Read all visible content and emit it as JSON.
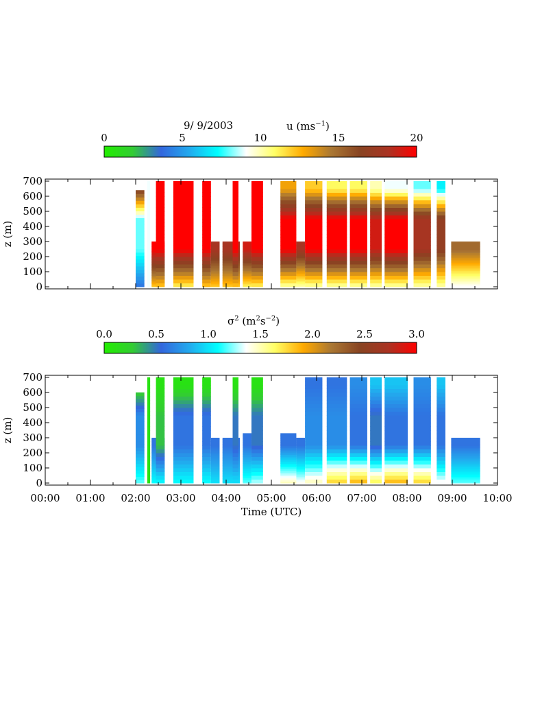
{
  "header": {
    "date": "9/ 9/2003",
    "top_title_prefix": "u (ms",
    "top_title_exp": "−1",
    "top_title_suffix": ")",
    "bottom_title_sym": "σ",
    "bottom_title_exp1": "2",
    "bottom_title_mid": " (m",
    "bottom_title_exp2": "2",
    "bottom_title_mid2": "s",
    "bottom_title_exp3": "−2",
    "bottom_title_suffix": ")"
  },
  "colors": {
    "colormap": [
      "#22ee00",
      "#33cc33",
      "#3366dd",
      "#22aaee",
      "#00ffff",
      "#ffffff",
      "#ffff66",
      "#ffaa00",
      "#aa7733",
      "#884422",
      "#aa3322",
      "#ff0000"
    ]
  },
  "chart_data": [
    {
      "type": "heatmap",
      "variable": "u",
      "title": "9/ 9/2003      u (ms−1)",
      "ylabel": "z (m)",
      "xlabel": "",
      "ylim": [
        0,
        700
      ],
      "xlim": [
        0,
        10
      ],
      "yticks": [
        "0",
        "100",
        "200",
        "300",
        "400",
        "500",
        "600",
        "700"
      ],
      "colorbar": {
        "range": [
          0,
          20
        ],
        "ticks": [
          "0",
          "5",
          "10",
          "15",
          "20"
        ]
      },
      "grid": false,
      "profiles": [
        {
          "t0": 2.0,
          "t1": 2.3,
          "top": 640,
          "surface": 4,
          "mix": 8,
          "upper": 17
        },
        {
          "t0": 2.4,
          "t1": 2.5,
          "top": 700,
          "surface": 9,
          "mix": 9,
          "upper": 9
        },
        {
          "t0": 2.55,
          "t1": 3.0,
          "top": 300,
          "surface": 12,
          "mix": 20,
          "upper": 20
        },
        {
          "t0": 2.7,
          "t1": 3.0,
          "top": 700,
          "surface": 12,
          "mix": 20,
          "upper": 20
        },
        {
          "t0": 3.3,
          "t1": 4.0,
          "top": 700,
          "surface": 11,
          "mix": 20,
          "upper": 20
        },
        {
          "t0": 4.3,
          "t1": 4.6,
          "top": 700,
          "surface": 12,
          "mix": 20,
          "upper": 20
        },
        {
          "t0": 4.6,
          "t1": 4.9,
          "top": 300,
          "surface": 12,
          "mix": 18,
          "upper": 18
        },
        {
          "t0": 5.0,
          "t1": 5.6,
          "top": 300,
          "surface": 12,
          "mix": 18,
          "upper": 18
        },
        {
          "t0": 5.35,
          "t1": 5.55,
          "top": 700,
          "surface": 12,
          "mix": 20,
          "upper": 20
        },
        {
          "t0": 5.7,
          "t1": 6.0,
          "top": 300,
          "surface": 11,
          "mix": 19,
          "upper": 19
        },
        {
          "t0": 6.0,
          "t1": 6.4,
          "top": 700,
          "surface": 11,
          "mix": 20,
          "upper": 20
        },
        {
          "t0": 7.0,
          "t1": 7.55,
          "top": 700,
          "surface": 10,
          "mix": 20,
          "upper": 13
        },
        {
          "t0": 7.55,
          "t1": 7.85,
          "top": 300,
          "surface": 10,
          "mix": 18,
          "upper": 18
        },
        {
          "t0": 7.85,
          "t1": 8.45,
          "top": 700,
          "surface": 10,
          "mix": 20,
          "upper": 12
        },
        {
          "t0": 8.6,
          "t1": 9.3,
          "top": 700,
          "surface": 10,
          "mix": 20,
          "upper": 11
        },
        {
          "t0": 9.4,
          "t1": 10.0,
          "top": 700,
          "surface": 10,
          "mix": 20,
          "upper": 11
        },
        {
          "t0": 10.1,
          "t1": 10.5,
          "top": 700,
          "surface": 10,
          "mix": 19,
          "upper": 10
        },
        {
          "t0": 10.6,
          "t1": 11.4,
          "top": 700,
          "surface": 10,
          "mix": 20,
          "upper": 9
        },
        {
          "t0": 11.6,
          "t1": 12.2,
          "top": 700,
          "surface": 10,
          "mix": 18,
          "upper": 8
        },
        {
          "t0": 12.4,
          "t1": 12.7,
          "top": 700,
          "surface": 10,
          "mix": 17,
          "upper": 7
        },
        {
          "t0": 12.9,
          "t1": 13.9,
          "top": 300,
          "surface": 9,
          "mix": 15,
          "upper": 15
        }
      ]
    },
    {
      "type": "heatmap",
      "variable": "sigma^2",
      "title": "σ2 (m2s−2)",
      "ylabel": "z (m)",
      "xlabel": "Time (UTC)",
      "ylim": [
        0,
        700
      ],
      "xlim": [
        0,
        10
      ],
      "yticks": [
        "0",
        "100",
        "200",
        "300",
        "400",
        "500",
        "600",
        "700"
      ],
      "xticks": [
        "00:00",
        "01:00",
        "02:00",
        "03:00",
        "04:00",
        "05:00",
        "06:00",
        "07:00",
        "08:00",
        "09:00",
        "10:00"
      ],
      "colorbar": {
        "range": [
          0.0,
          3.0
        ],
        "ticks": [
          "0.0",
          "0.5",
          "1.0",
          "1.5",
          "2.0",
          "2.5",
          "3.0"
        ]
      },
      "grid": false,
      "profiles": [
        {
          "t0": 2.0,
          "t1": 2.3,
          "top": 600,
          "surface": 1.2,
          "mix": 0.7,
          "upper": 0.1
        },
        {
          "t0": 2.4,
          "t1": 2.5,
          "top": 700,
          "surface": 0.1,
          "mix": 0.1,
          "upper": 0.1
        },
        {
          "t0": 2.55,
          "t1": 3.0,
          "top": 300,
          "surface": 1.1,
          "mix": 0.6,
          "upper": 0.1
        },
        {
          "t0": 2.7,
          "t1": 3.0,
          "top": 700,
          "surface": 1.1,
          "mix": 0.3,
          "upper": 0.1
        },
        {
          "t0": 3.3,
          "t1": 4.0,
          "top": 700,
          "surface": 1.1,
          "mix": 0.6,
          "upper": 0.1
        },
        {
          "t0": 4.3,
          "t1": 4.6,
          "top": 700,
          "surface": 1.1,
          "mix": 0.6,
          "upper": 0.1
        },
        {
          "t0": 4.6,
          "t1": 4.9,
          "top": 300,
          "surface": 1.0,
          "mix": 0.6,
          "upper": 0.2
        },
        {
          "t0": 5.0,
          "t1": 5.6,
          "top": 300,
          "surface": 1.0,
          "mix": 0.6,
          "upper": 0.3
        },
        {
          "t0": 5.35,
          "t1": 5.55,
          "top": 700,
          "surface": 1.0,
          "mix": 0.5,
          "upper": 0.1
        },
        {
          "t0": 5.7,
          "t1": 6.0,
          "top": 330,
          "surface": 1.2,
          "mix": 0.6,
          "upper": 0.2
        },
        {
          "t0": 6.0,
          "t1": 6.4,
          "top": 700,
          "surface": 1.3,
          "mix": 0.5,
          "upper": 0.1
        },
        {
          "t0": 7.0,
          "t1": 7.55,
          "top": 330,
          "surface": 1.5,
          "mix": 0.6,
          "upper": 0.1
        },
        {
          "t0": 7.55,
          "t1": 7.85,
          "top": 300,
          "surface": 1.4,
          "mix": 0.6,
          "upper": 0.2
        },
        {
          "t0": 7.85,
          "t1": 8.45,
          "top": 700,
          "surface": 1.5,
          "mix": 0.7,
          "upper": 0.6
        },
        {
          "t0": 8.6,
          "t1": 9.3,
          "top": 700,
          "surface": 1.8,
          "mix": 0.7,
          "upper": 0.6
        },
        {
          "t0": 9.4,
          "t1": 10.0,
          "top": 700,
          "surface": 1.9,
          "mix": 0.6,
          "upper": 0.7
        },
        {
          "t0": 10.1,
          "t1": 10.5,
          "top": 700,
          "surface": 1.7,
          "mix": 0.5,
          "upper": 0.9
        },
        {
          "t0": 10.6,
          "t1": 11.4,
          "top": 700,
          "surface": 1.9,
          "mix": 0.6,
          "upper": 0.9
        },
        {
          "t0": 11.6,
          "t1": 12.2,
          "top": 700,
          "surface": 1.8,
          "mix": 0.6,
          "upper": 0.7
        },
        {
          "t0": 12.4,
          "t1": 12.7,
          "top": 700,
          "surface": 1.4,
          "mix": 0.6,
          "upper": 0.9
        },
        {
          "t0": 12.9,
          "t1": 13.9,
          "top": 300,
          "surface": 1.2,
          "mix": 0.6,
          "upper": 0.2
        }
      ]
    }
  ]
}
